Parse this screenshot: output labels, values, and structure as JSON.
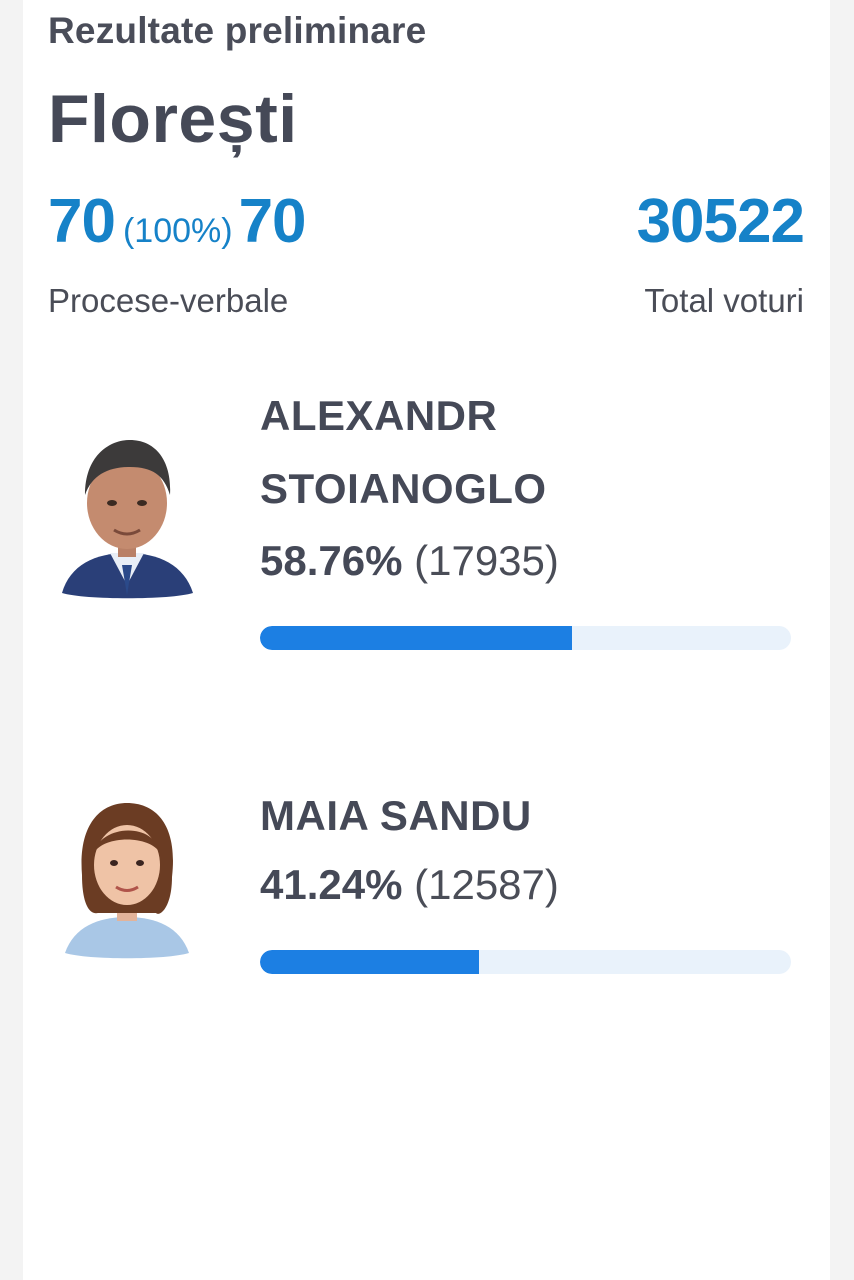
{
  "header": {
    "subtitle": "Rezultate preliminare",
    "title": "Florești"
  },
  "stats": {
    "processed": "70",
    "processed_pct": "(100%)",
    "total_protocols": "70",
    "protocols_label": "Procese-verbale",
    "total_votes": "30522",
    "votes_label": "Total voturi"
  },
  "candidates": [
    {
      "name_line1": "ALEXANDR",
      "name_line2": "STOIANOGLO",
      "percent": "58.76%",
      "votes": "(17935)",
      "share": 0.5876,
      "photo": "portrait-man"
    },
    {
      "name_line1": "MAIA SANDU",
      "percent": "41.24%",
      "votes": "(12587)",
      "share": 0.4124,
      "photo": "portrait-woman"
    }
  ],
  "colors": {
    "accent": "#1682c8",
    "bar_fill": "#1c7fe3",
    "bar_track": "#e9f2fb",
    "text": "#454957"
  }
}
